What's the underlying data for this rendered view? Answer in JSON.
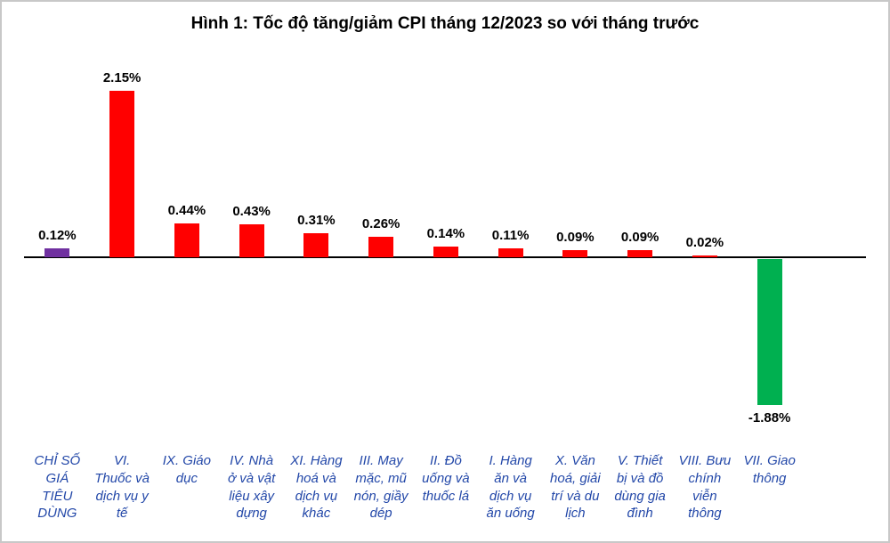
{
  "chart_data": {
    "type": "bar",
    "title": "Hình 1: Tốc độ tăng/giảm CPI tháng 12/2023 so với tháng trước",
    "categories": [
      "CHỈ SỐ\nGIÁ\nTIÊU\nDÙNG",
      "VI.\nThuốc và\ndịch vụ y\ntế",
      "IX. Giáo\ndục",
      "IV. Nhà\nở và vật\nliệu xây\ndựng",
      "XI. Hàng\nhoá và\ndịch vụ\nkhác",
      "III. May\nmặc, mũ\nnón, giầy\ndép",
      "II. Đồ\nuống và\nthuốc lá",
      "I. Hàng\năn và\ndịch vụ\năn uống",
      "X. Văn\nhoá, giải\ntrí và du\nlịch",
      "V. Thiết\nbị và đồ\ndùng gia\nđình",
      "VIII. Bưu\nchính\nviễn\nthông",
      "VII. Giao\nthông"
    ],
    "values": [
      0.12,
      2.15,
      0.44,
      0.43,
      0.31,
      0.26,
      0.14,
      0.11,
      0.09,
      0.09,
      0.02,
      -1.88
    ],
    "value_labels": [
      "0.12%",
      "2.15%",
      "0.44%",
      "0.43%",
      "0.31%",
      "0.26%",
      "0.14%",
      "0.11%",
      "0.09%",
      "0.09%",
      "0.02%",
      "-1.88%"
    ],
    "bar_colors": [
      "#7030A0",
      "#FF0000",
      "#FF0000",
      "#FF0000",
      "#FF0000",
      "#FF0000",
      "#FF0000",
      "#FF0000",
      "#FF0000",
      "#FF0000",
      "#FF0000",
      "#00B050"
    ],
    "category_label_color": "#2247A8",
    "axis_line_color": "#000000",
    "xlabel": "",
    "ylabel": "",
    "ylim": [
      -2.2,
      2.6
    ],
    "grid": false,
    "legend": "none"
  }
}
